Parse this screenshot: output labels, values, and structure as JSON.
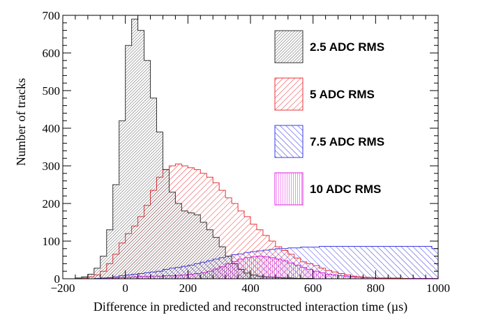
{
  "chart_data": {
    "type": "histogram",
    "xlabel": "Difference in predicted and reconstructed interaction time (µs)",
    "ylabel": "Number of tracks",
    "xlim": [
      -200,
      1000
    ],
    "ylim": [
      0,
      700
    ],
    "x_ticks": [
      "−200",
      "0",
      "200",
      "400",
      "600",
      "800",
      "1000"
    ],
    "y_ticks": [
      "0",
      "100",
      "200",
      "300",
      "400",
      "500",
      "600",
      "700"
    ],
    "legend_position": "top-right",
    "grid": false,
    "bin_centers": [
      -190,
      -170,
      -150,
      -130,
      -110,
      -90,
      -70,
      -50,
      -30,
      -10,
      10,
      30,
      50,
      70,
      90,
      110,
      130,
      150,
      170,
      190,
      210,
      230,
      250,
      270,
      290,
      310,
      330,
      350,
      370,
      390,
      410,
      430,
      450,
      470,
      490,
      510,
      530,
      550,
      570,
      590,
      610,
      630,
      650,
      670,
      690,
      710,
      730,
      750,
      770,
      790,
      810,
      830,
      850,
      870,
      890,
      910,
      930,
      950,
      970,
      990
    ],
    "series": [
      {
        "name": "2.5 ADC RMS",
        "color": "#333333",
        "hatch": "grey-dense",
        "values": [
          0,
          0,
          2,
          5,
          12,
          28,
          60,
          130,
          250,
          420,
          620,
          690,
          660,
          580,
          480,
          390,
          290,
          230,
          200,
          180,
          175,
          170,
          150,
          130,
          110,
          85,
          60,
          40,
          25,
          15,
          10,
          7,
          5,
          4,
          3,
          2,
          2,
          1,
          1,
          1,
          0,
          0,
          0,
          0,
          0,
          0,
          0,
          0,
          0,
          0,
          0,
          0,
          0,
          0,
          0,
          0,
          0,
          0,
          0,
          0
        ]
      },
      {
        "name": "5 ADC RMS",
        "color": "#e8333a",
        "hatch": "diagonal-right",
        "values": [
          0,
          0,
          0,
          2,
          5,
          10,
          20,
          40,
          65,
          95,
          120,
          140,
          165,
          195,
          235,
          270,
          290,
          300,
          305,
          300,
          295,
          290,
          280,
          270,
          255,
          235,
          215,
          200,
          180,
          165,
          145,
          130,
          115,
          100,
          85,
          75,
          65,
          55,
          45,
          40,
          35,
          28,
          22,
          18,
          14,
          10,
          7,
          5,
          4,
          3,
          2,
          2,
          1,
          1,
          1,
          0,
          0,
          0,
          0,
          0
        ]
      },
      {
        "name": "7.5 ADC RMS",
        "color": "#3a3ae8",
        "hatch": "diagonal-left",
        "values": [
          0,
          0,
          0,
          0,
          0,
          1,
          2,
          3,
          5,
          8,
          10,
          12,
          14,
          16,
          18,
          20,
          25,
          28,
          30,
          33,
          36,
          40,
          44,
          48,
          52,
          56,
          60,
          64,
          66,
          70,
          72,
          74,
          76,
          78,
          80,
          80,
          82,
          82,
          84,
          84,
          84,
          86,
          86,
          86,
          86,
          86,
          86,
          86,
          86,
          86,
          86,
          86,
          86,
          86,
          86,
          86,
          86,
          86,
          86,
          80
        ]
      },
      {
        "name": "10 ADC RMS",
        "color": "#e020e0",
        "hatch": "vertical",
        "values": [
          0,
          0,
          0,
          0,
          0,
          0,
          1,
          2,
          2,
          3,
          4,
          5,
          6,
          6,
          7,
          7,
          8,
          8,
          9,
          10,
          12,
          14,
          16,
          20,
          26,
          32,
          40,
          46,
          52,
          56,
          58,
          60,
          58,
          56,
          52,
          48,
          42,
          36,
          30,
          25,
          20,
          16,
          12,
          10,
          8,
          6,
          5,
          4,
          3,
          3,
          2,
          2,
          2,
          2,
          1,
          1,
          1,
          1,
          1,
          1
        ]
      }
    ]
  }
}
